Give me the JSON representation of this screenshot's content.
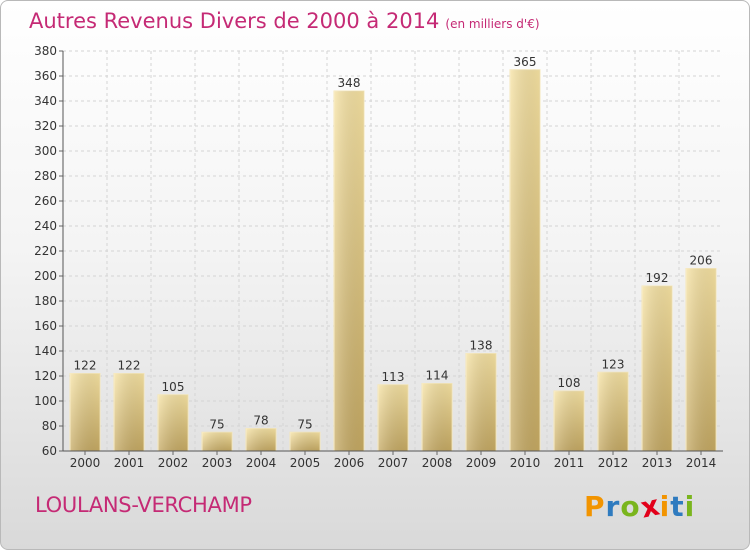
{
  "header": {
    "title": "Autres Revenus Divers de 2000 à 2014",
    "unit": "(en milliers d'€)"
  },
  "footer": {
    "location": "LOULANS-VERCHAMP",
    "logo": {
      "letters": [
        "P",
        "r",
        "o",
        "x",
        "i",
        "t",
        "i"
      ],
      "colors": [
        "#f29400",
        "#2f7bbf",
        "#7ab51d",
        "#e2001a",
        "#f29400",
        "#2f7bbf",
        "#7ab51d"
      ]
    }
  },
  "colors": {
    "bar_light": "#f5de9a",
    "bar_dark": "#c9ad66",
    "title": "#c52a75",
    "grid": "#d4d4d4"
  },
  "chart_data": {
    "type": "bar",
    "title": "Autres Revenus Divers de 2000 à 2014",
    "subtitle": "(en milliers d'€)",
    "categories": [
      "2000",
      "2001",
      "2002",
      "2003",
      "2004",
      "2005",
      "2006",
      "2007",
      "2008",
      "2009",
      "2010",
      "2011",
      "2012",
      "2013",
      "2014"
    ],
    "values": [
      122,
      122,
      105,
      75,
      78,
      75,
      348,
      113,
      114,
      138,
      365,
      108,
      123,
      192,
      206
    ],
    "ylim": [
      60,
      380
    ],
    "yticks": [
      60,
      80,
      100,
      120,
      140,
      160,
      180,
      200,
      220,
      240,
      260,
      280,
      300,
      320,
      340,
      360,
      380
    ],
    "grid": true,
    "xlabel": "",
    "ylabel": ""
  }
}
